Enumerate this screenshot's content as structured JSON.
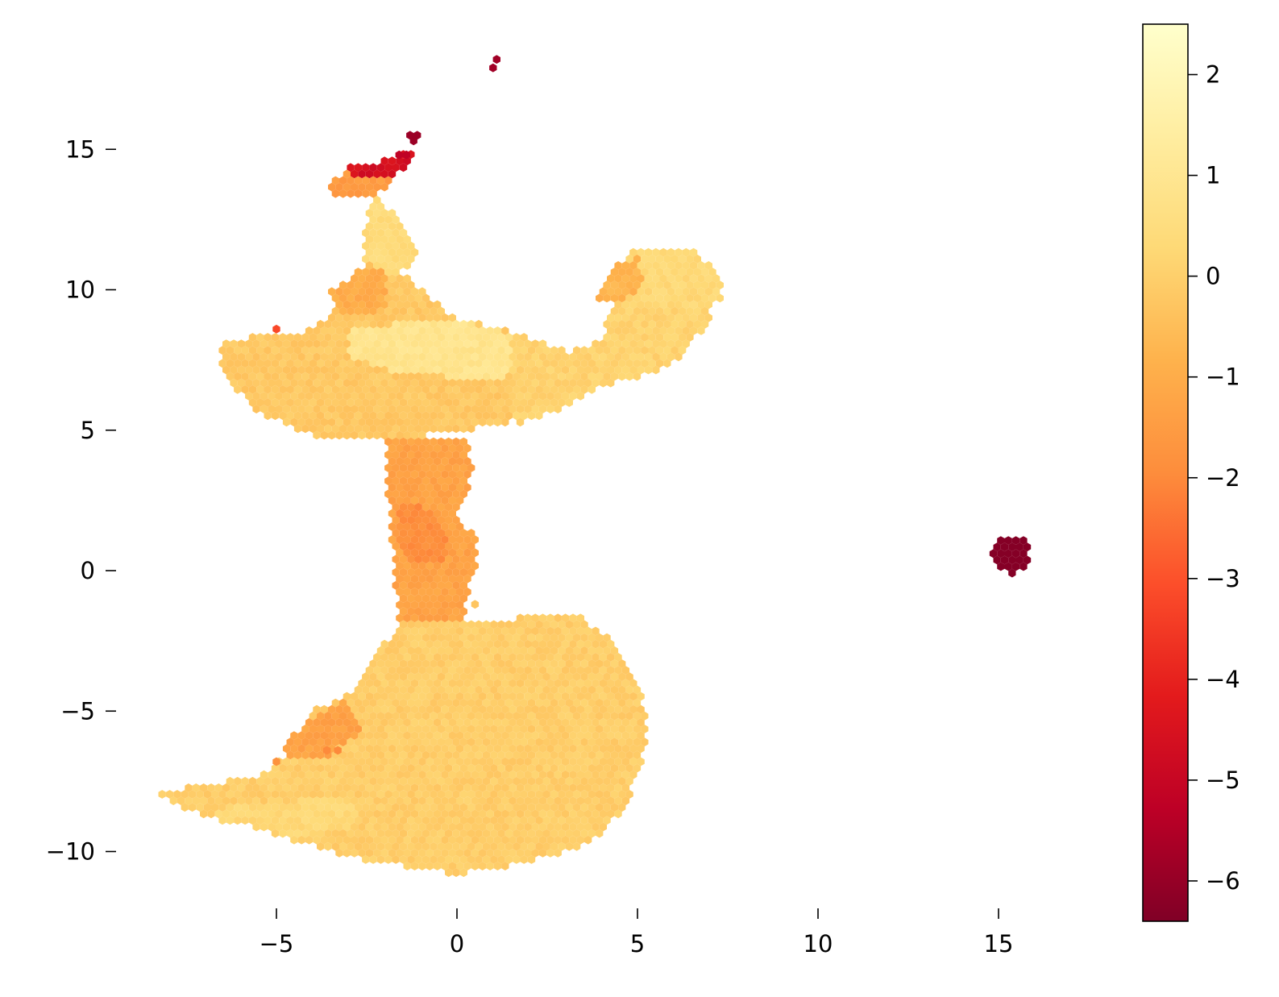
{
  "chart_data": {
    "type": "heatmap",
    "subtype": "hexbin",
    "title": "",
    "xlabel": "",
    "ylabel": "",
    "xlim": [
      -10.0,
      19.5
    ],
    "ylim": [
      -11.8,
      19.2
    ],
    "x_ticks": [
      -5,
      0,
      5,
      10,
      15
    ],
    "x_tick_labels": [
      "−5",
      "0",
      "5",
      "10",
      "15"
    ],
    "y_ticks": [
      -10,
      -5,
      0,
      5,
      10,
      15
    ],
    "y_tick_labels": [
      "−10",
      "−5",
      "0",
      "5",
      "10",
      "15"
    ],
    "colorbar": {
      "colormap": "YlOrRd_r",
      "range": [
        -6.4,
        2.5
      ],
      "ticks": [
        2,
        1,
        0,
        -1,
        -2,
        -3,
        -4,
        -5,
        -6
      ],
      "tick_labels": [
        "2",
        "1",
        "0",
        "−1",
        "−2",
        "−3",
        "−4",
        "−5",
        "−6"
      ],
      "colors": [
        "#800026",
        "#bd0026",
        "#e31a1c",
        "#fc4e2a",
        "#fd8d3c",
        "#feb24c",
        "#fed976",
        "#ffeda0",
        "#ffffcc"
      ]
    },
    "regions": [
      {
        "name": "upper-left lobe",
        "outline": [
          [
            -6.6,
            7.5
          ],
          [
            -6.5,
            8.2
          ],
          [
            -5.0,
            8.4
          ],
          [
            -4.0,
            8.6
          ],
          [
            -3.5,
            9.2
          ],
          [
            -3.0,
            10.2
          ],
          [
            -2.5,
            11.0
          ],
          [
            -1.8,
            11.0
          ],
          [
            -1.0,
            10.0
          ],
          [
            0.0,
            9.0
          ],
          [
            1.5,
            8.5
          ],
          [
            2.3,
            8.0
          ],
          [
            2.0,
            6.5
          ],
          [
            1.5,
            5.2
          ],
          [
            0.0,
            5.0
          ],
          [
            -2.0,
            4.6
          ],
          [
            -4.0,
            4.8
          ],
          [
            -5.5,
            5.6
          ],
          [
            -6.4,
            6.8
          ]
        ],
        "value": -0.2
      },
      {
        "name": "central bright band",
        "outline": [
          [
            -3.0,
            8.6
          ],
          [
            0.0,
            9.0
          ],
          [
            2.0,
            8.2
          ],
          [
            2.3,
            7.3
          ],
          [
            1.0,
            6.8
          ],
          [
            -1.5,
            7.0
          ],
          [
            -3.0,
            7.6
          ]
        ],
        "value": 0.9
      },
      {
        "name": "upper-right arm",
        "outline": [
          [
            1.5,
            8.5
          ],
          [
            3.0,
            7.8
          ],
          [
            4.0,
            8.2
          ],
          [
            4.3,
            9.6
          ],
          [
            4.2,
            10.6
          ],
          [
            5.0,
            11.5
          ],
          [
            6.4,
            11.5
          ],
          [
            7.3,
            10.5
          ],
          [
            7.0,
            9.0
          ],
          [
            6.3,
            7.6
          ],
          [
            5.3,
            7.0
          ],
          [
            4.3,
            6.7
          ],
          [
            3.0,
            5.8
          ],
          [
            1.6,
            5.2
          ]
        ],
        "value": 0.1
      },
      {
        "name": "upper-right arm tip",
        "outline": [
          [
            4.4,
            10.6
          ],
          [
            5.0,
            11.5
          ],
          [
            6.4,
            11.5
          ],
          [
            7.3,
            10.6
          ],
          [
            7.3,
            9.6
          ],
          [
            6.3,
            9.2
          ],
          [
            5.2,
            9.6
          ]
        ],
        "value": 0.3
      },
      {
        "name": "upper-right arm shoulder",
        "outline": [
          [
            3.8,
            9.6
          ],
          [
            4.3,
            10.8
          ],
          [
            5.0,
            11.2
          ],
          [
            5.2,
            10.3
          ],
          [
            4.6,
            9.5
          ]
        ],
        "value": -0.8
      },
      {
        "name": "stem",
        "outline": [
          [
            -2.3,
            13.5
          ],
          [
            -1.4,
            12.2
          ],
          [
            -1.0,
            11.2
          ],
          [
            -1.8,
            10.4
          ],
          [
            -2.6,
            11.0
          ],
          [
            -2.5,
            12.5
          ]
        ],
        "value": 0.4
      },
      {
        "name": "upper stem left",
        "outline": [
          [
            -3.5,
            10.0
          ],
          [
            -2.6,
            10.8
          ],
          [
            -2.0,
            10.8
          ],
          [
            -2.0,
            9.3
          ],
          [
            -3.2,
            9.0
          ]
        ],
        "value": -1.0
      },
      {
        "name": "top fork",
        "outline": [
          [
            -3.6,
            13.7
          ],
          [
            -2.8,
            14.4
          ],
          [
            -2.0,
            14.4
          ],
          [
            -1.8,
            13.8
          ],
          [
            -2.6,
            13.2
          ],
          [
            -3.4,
            13.3
          ]
        ],
        "value": -1.5
      },
      {
        "name": "top fork tip",
        "outline": [
          [
            -3.0,
            14.4
          ],
          [
            -2.2,
            14.5
          ],
          [
            -1.6,
            14.8
          ],
          [
            -1.2,
            14.9
          ],
          [
            -1.6,
            14.1
          ],
          [
            -2.4,
            14.0
          ],
          [
            -3.0,
            14.1
          ]
        ],
        "value": -4.6
      },
      {
        "name": "neck",
        "outline": [
          [
            -2.0,
            4.8
          ],
          [
            0.2,
            4.8
          ],
          [
            0.5,
            3.6
          ],
          [
            0.0,
            2.0
          ],
          [
            0.6,
            1.0
          ],
          [
            0.6,
            0.0
          ],
          [
            0.2,
            -1.0
          ],
          [
            0.2,
            -2.0
          ],
          [
            -1.6,
            -2.0
          ],
          [
            -1.7,
            -0.5
          ],
          [
            -1.8,
            1.0
          ],
          [
            -2.0,
            3.5
          ]
        ],
        "value": -1.3
      },
      {
        "name": "neck core",
        "outline": [
          [
            -1.6,
            2.4
          ],
          [
            -0.8,
            2.2
          ],
          [
            -0.2,
            1.2
          ],
          [
            -0.4,
            0.2
          ],
          [
            -1.2,
            0.2
          ],
          [
            -1.7,
            1.0
          ]
        ],
        "value": -1.9
      },
      {
        "name": "lower lobe",
        "outline": [
          [
            -1.6,
            -1.8
          ],
          [
            0.5,
            -1.8
          ],
          [
            1.5,
            -1.7
          ],
          [
            2.5,
            -1.5
          ],
          [
            3.5,
            -1.7
          ],
          [
            4.2,
            -2.4
          ],
          [
            4.8,
            -3.5
          ],
          [
            5.2,
            -4.8
          ],
          [
            5.2,
            -6.5
          ],
          [
            4.9,
            -7.6
          ],
          [
            4.6,
            -8.5
          ],
          [
            3.8,
            -9.6
          ],
          [
            3.0,
            -10.0
          ],
          [
            1.5,
            -10.5
          ],
          [
            0.0,
            -10.8
          ],
          [
            -1.5,
            -10.5
          ],
          [
            -3.0,
            -10.2
          ],
          [
            -4.5,
            -9.6
          ],
          [
            -6.0,
            -9.0
          ],
          [
            -7.5,
            -8.5
          ],
          [
            -8.4,
            -8.0
          ],
          [
            -7.0,
            -7.6
          ],
          [
            -5.5,
            -7.3
          ],
          [
            -4.6,
            -6.5
          ],
          [
            -4.0,
            -5.0
          ],
          [
            -2.8,
            -4.3
          ],
          [
            -2.2,
            -3.0
          ]
        ],
        "value": -0.05
      },
      {
        "name": "lower lobe bright",
        "outline": [
          [
            -7.0,
            -8.5
          ],
          [
            -4.5,
            -8.2
          ],
          [
            -3.0,
            -8.0
          ],
          [
            -2.5,
            -9.0
          ],
          [
            -4.5,
            -9.5
          ],
          [
            -6.5,
            -8.9
          ]
        ],
        "value": 0.3
      },
      {
        "name": "lower lobe left edge",
        "outline": [
          [
            -4.8,
            -6.2
          ],
          [
            -4.0,
            -5.2
          ],
          [
            -3.0,
            -4.6
          ],
          [
            -2.6,
            -5.8
          ],
          [
            -3.6,
            -6.6
          ],
          [
            -4.6,
            -6.6
          ]
        ],
        "value": -1.3
      }
    ],
    "points": [
      {
        "x": 1.0,
        "y": 17.9,
        "value": -5.8
      },
      {
        "x": 1.1,
        "y": 18.2,
        "value": -5.8
      },
      {
        "x": -1.3,
        "y": 15.5,
        "value": -5.9
      },
      {
        "x": -1.1,
        "y": 15.5,
        "value": -5.9
      },
      {
        "x": -1.2,
        "y": 15.3,
        "value": -5.9
      },
      {
        "x": -1.6,
        "y": 14.8,
        "value": -5.2
      },
      {
        "x": -1.4,
        "y": 14.8,
        "value": -5.2
      },
      {
        "x": -5.0,
        "y": 8.6,
        "value": -3.2
      },
      {
        "x": -3.6,
        "y": -6.4,
        "value": -2.0
      },
      {
        "x": -3.3,
        "y": -6.4,
        "value": -2.0
      },
      {
        "x": -5.0,
        "y": -6.8,
        "value": -1.8
      },
      {
        "x": 0.5,
        "y": -1.2,
        "value": -0.3
      }
    ],
    "clusters": [
      {
        "name": "outlier cluster",
        "center": [
          15.3,
          0.6
        ],
        "radius": 0.55,
        "value": -6.3
      }
    ]
  }
}
